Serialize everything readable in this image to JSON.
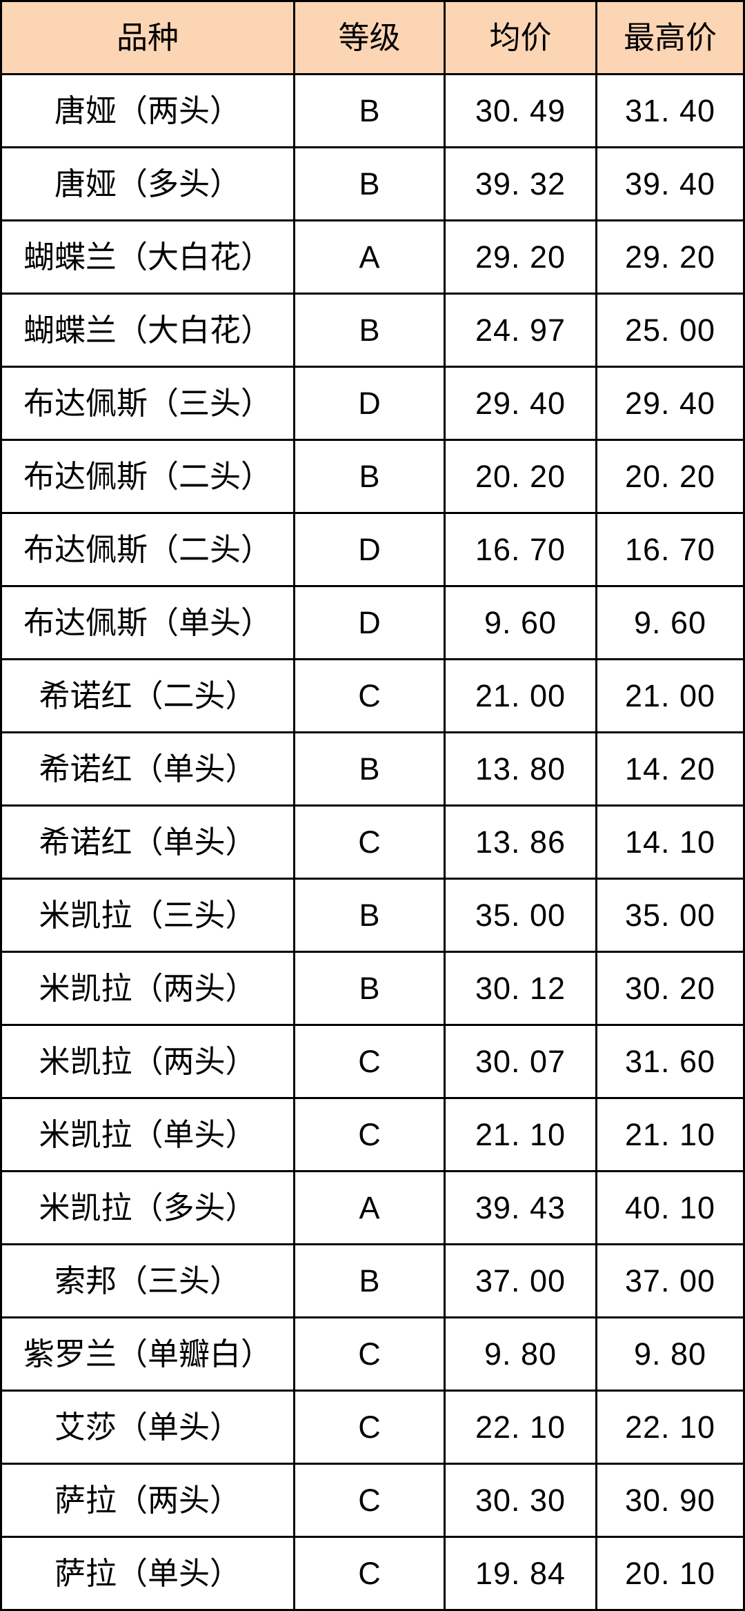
{
  "colors": {
    "header_bg": "#FCD5B4",
    "border": "#000000",
    "text": "#000000",
    "page_bg": "#FFFFFF"
  },
  "table": {
    "headers": [
      "品种",
      "等级",
      "均价",
      "最高价"
    ],
    "rows": [
      {
        "name": "唐娅（两头）",
        "grade": "B",
        "avg": "30. 49",
        "max": "31. 40"
      },
      {
        "name": "唐娅（多头）",
        "grade": "B",
        "avg": "39. 32",
        "max": "39. 40"
      },
      {
        "name": "蝴蝶兰（大白花）",
        "grade": "A",
        "avg": "29. 20",
        "max": "29. 20"
      },
      {
        "name": "蝴蝶兰（大白花）",
        "grade": "B",
        "avg": "24. 97",
        "max": "25. 00"
      },
      {
        "name": "布达佩斯（三头）",
        "grade": "D",
        "avg": "29. 40",
        "max": "29. 40"
      },
      {
        "name": "布达佩斯（二头）",
        "grade": "B",
        "avg": "20. 20",
        "max": "20. 20"
      },
      {
        "name": "布达佩斯（二头）",
        "grade": "D",
        "avg": "16. 70",
        "max": "16. 70"
      },
      {
        "name": "布达佩斯（单头）",
        "grade": "D",
        "avg": "9. 60",
        "max": "9. 60"
      },
      {
        "name": "希诺红（二头）",
        "grade": "C",
        "avg": "21. 00",
        "max": "21. 00"
      },
      {
        "name": "希诺红（单头）",
        "grade": "B",
        "avg": "13. 80",
        "max": "14. 20"
      },
      {
        "name": "希诺红（单头）",
        "grade": "C",
        "avg": "13. 86",
        "max": "14. 10"
      },
      {
        "name": "米凯拉（三头）",
        "grade": "B",
        "avg": "35. 00",
        "max": "35. 00"
      },
      {
        "name": "米凯拉（两头）",
        "grade": "B",
        "avg": "30. 12",
        "max": "30. 20"
      },
      {
        "name": "米凯拉（两头）",
        "grade": "C",
        "avg": "30. 07",
        "max": "31. 60"
      },
      {
        "name": "米凯拉（单头）",
        "grade": "C",
        "avg": "21. 10",
        "max": "21. 10"
      },
      {
        "name": "米凯拉（多头）",
        "grade": "A",
        "avg": "39. 43",
        "max": "40. 10"
      },
      {
        "name": "索邦（三头）",
        "grade": "B",
        "avg": "37. 00",
        "max": "37. 00"
      },
      {
        "name": "紫罗兰（单瓣白）",
        "grade": "C",
        "avg": "9. 80",
        "max": "9. 80"
      },
      {
        "name": "艾莎（单头）",
        "grade": "C",
        "avg": "22. 10",
        "max": "22. 10"
      },
      {
        "name": "萨拉（两头）",
        "grade": "C",
        "avg": "30. 30",
        "max": "30. 90"
      },
      {
        "name": "萨拉（单头）",
        "grade": "C",
        "avg": "19. 84",
        "max": "20. 10"
      }
    ]
  },
  "chart_data": {
    "type": "table",
    "title": "",
    "columns": [
      "品种",
      "等级",
      "均价",
      "最高价"
    ],
    "rows": [
      [
        "唐娅（两头）",
        "B",
        30.49,
        31.4
      ],
      [
        "唐娅（多头）",
        "B",
        39.32,
        39.4
      ],
      [
        "蝴蝶兰（大白花）",
        "A",
        29.2,
        29.2
      ],
      [
        "蝴蝶兰（大白花）",
        "B",
        24.97,
        25.0
      ],
      [
        "布达佩斯（三头）",
        "D",
        29.4,
        29.4
      ],
      [
        "布达佩斯（二头）",
        "B",
        20.2,
        20.2
      ],
      [
        "布达佩斯（二头）",
        "D",
        16.7,
        16.7
      ],
      [
        "布达佩斯（单头）",
        "D",
        9.6,
        9.6
      ],
      [
        "希诺红（二头）",
        "C",
        21.0,
        21.0
      ],
      [
        "希诺红（单头）",
        "B",
        13.8,
        14.2
      ],
      [
        "希诺红（单头）",
        "C",
        13.86,
        14.1
      ],
      [
        "米凯拉（三头）",
        "B",
        35.0,
        35.0
      ],
      [
        "米凯拉（两头）",
        "B",
        30.12,
        30.2
      ],
      [
        "米凯拉（两头）",
        "C",
        30.07,
        31.6
      ],
      [
        "米凯拉（单头）",
        "C",
        21.1,
        21.1
      ],
      [
        "米凯拉（多头）",
        "A",
        39.43,
        40.1
      ],
      [
        "索邦（三头）",
        "B",
        37.0,
        37.0
      ],
      [
        "紫罗兰（单瓣白）",
        "C",
        9.8,
        9.8
      ],
      [
        "艾莎（单头）",
        "C",
        22.1,
        22.1
      ],
      [
        "萨拉（两头）",
        "C",
        30.3,
        30.9
      ],
      [
        "萨拉（单头）",
        "C",
        19.84,
        20.1
      ]
    ],
    "layout": {
      "grid": true,
      "header_fill": "#FCD5B4",
      "text_align": "center"
    }
  }
}
